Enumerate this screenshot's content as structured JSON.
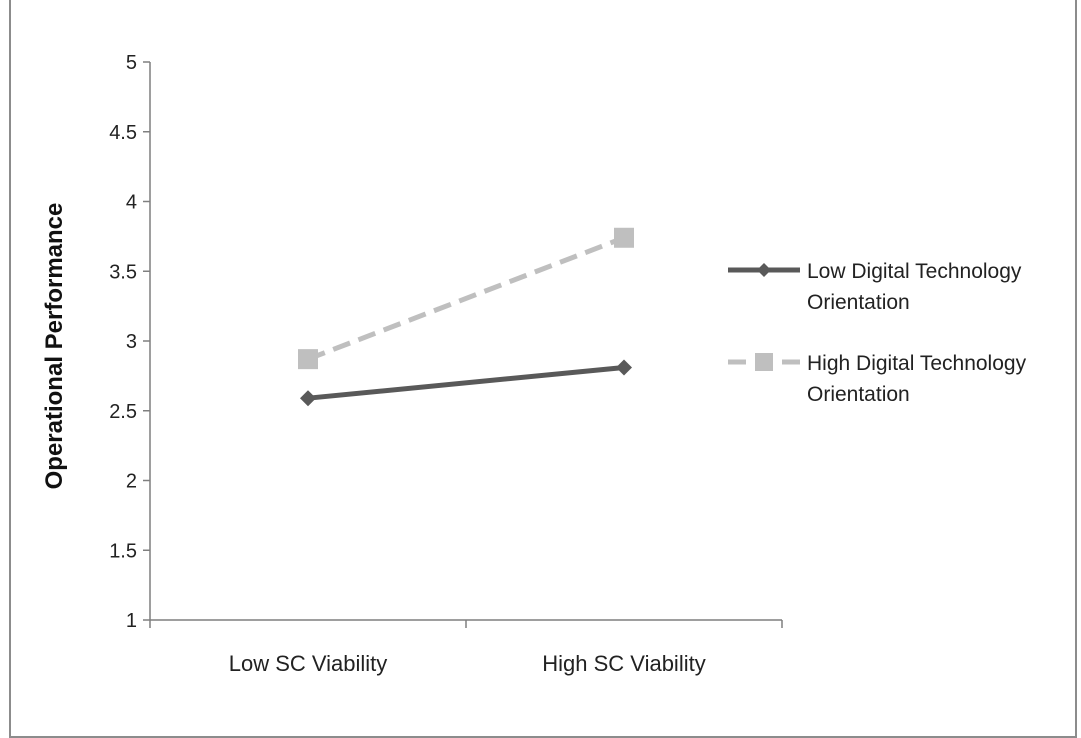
{
  "chart_data": {
    "type": "line",
    "title": "",
    "xlabel": "",
    "ylabel": "Operational Performance",
    "categories": [
      "Low SC Viability",
      "High SC Viability"
    ],
    "ylim": [
      1,
      5
    ],
    "yticks": [
      "1",
      "1.5",
      "2",
      "2.5",
      "3",
      "3.5",
      "4",
      "4.5",
      "5"
    ],
    "grid": false,
    "legend_position": "right",
    "series": [
      {
        "name_lines": [
          "Low Digital Technology",
          "Orientation"
        ],
        "values": [
          2.59,
          2.81
        ],
        "color": "#595959",
        "line_style": "solid",
        "marker": "diamond"
      },
      {
        "name_lines": [
          "High Digital Technology",
          "Orientation"
        ],
        "values": [
          2.87,
          3.74
        ],
        "color": "#bfbfbf",
        "line_style": "dashed",
        "marker": "square"
      }
    ]
  }
}
